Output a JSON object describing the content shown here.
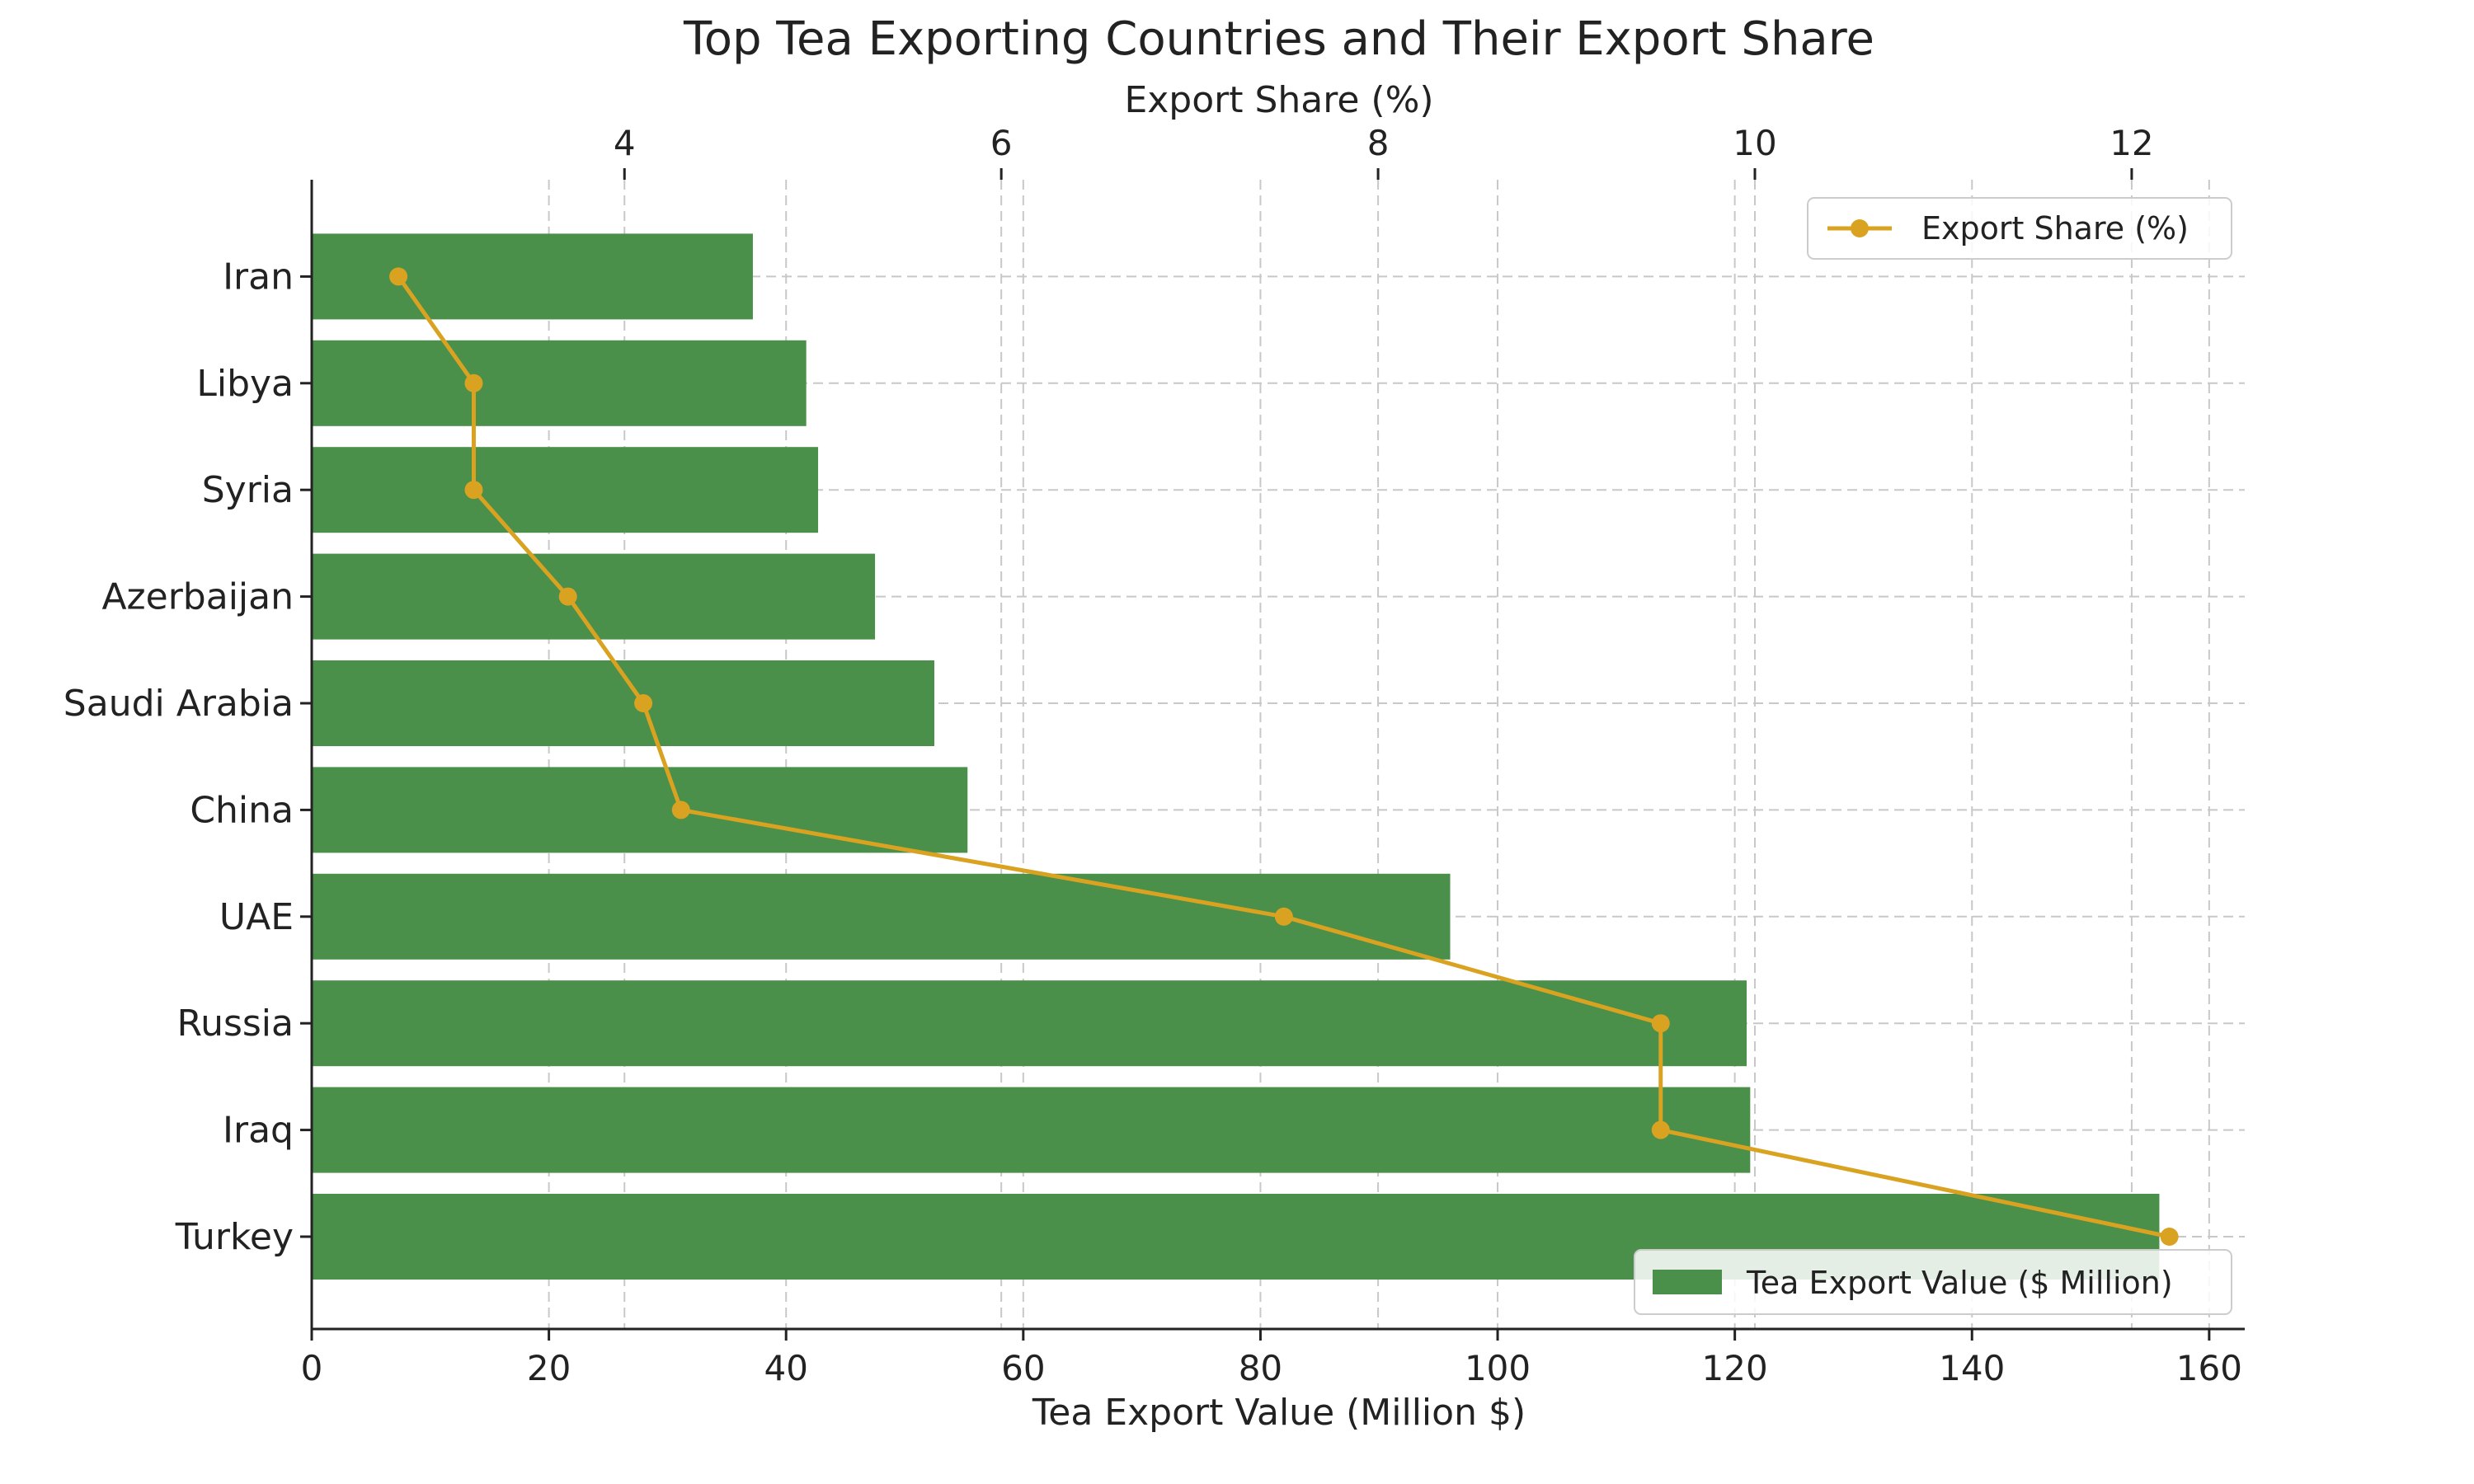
{
  "chart_data": {
    "type": "bar",
    "orientation": "horizontal",
    "title": "Top Tea Exporting Countries and Their Export Share",
    "xlabel": "Tea Export Value (Million $)",
    "secondary_xlabel": "Export Share (%)",
    "categories": [
      "Turkey",
      "Iraq",
      "Russia",
      "UAE",
      "China",
      "Saudi Arabia",
      "Azerbaijan",
      "Syria",
      "Libya",
      "Iran"
    ],
    "series": [
      {
        "name": "Tea Export Value ($ Million)",
        "kind": "bar",
        "axis": "bottom",
        "values": [
          155.8,
          121.3,
          121.0,
          96.0,
          55.3,
          52.5,
          47.5,
          42.7,
          41.7,
          37.2
        ]
      },
      {
        "name": "Export Share (%)",
        "kind": "line",
        "axis": "top",
        "values": [
          12.2,
          9.5,
          9.5,
          7.5,
          4.3,
          4.1,
          3.7,
          3.2,
          3.2,
          2.8
        ]
      }
    ],
    "xlim": [
      0,
      163
    ],
    "xticks": [
      0,
      20,
      40,
      60,
      80,
      100,
      120,
      140,
      160
    ],
    "secondary_xlim": [
      2.34,
      12.6
    ],
    "secondary_xticks": [
      4,
      6,
      8,
      10,
      12
    ],
    "grid": true,
    "legends": [
      {
        "entry": "Export Share (%)",
        "placement": "top-right"
      },
      {
        "entry": "Tea Export Value ($ Million)",
        "placement": "bottom-right"
      }
    ],
    "colors": {
      "bar": "#4a8f4a",
      "line": "#daa221",
      "grid": "#c8c8c8",
      "axis": "#222222"
    }
  }
}
